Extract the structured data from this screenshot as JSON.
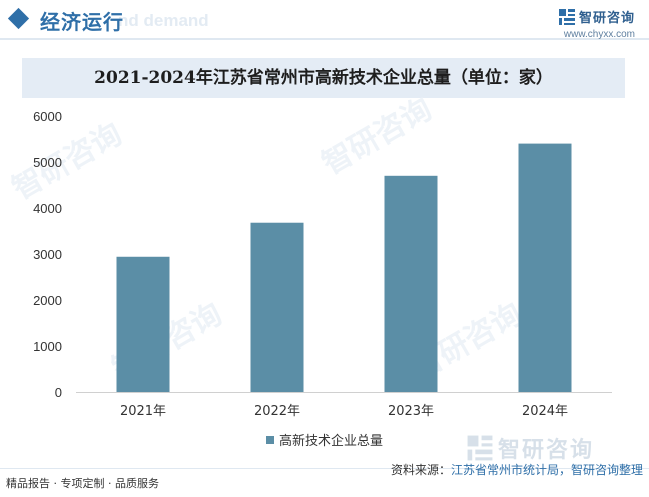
{
  "header": {
    "section_title": "经济运行",
    "ghost_title": "nd demand",
    "brand_name": "智研咨询",
    "brand_url": "www.chyxx.com"
  },
  "chart_data": {
    "type": "bar",
    "title": "2021-2024年江苏省常州市高新技术企业总量（单位：家）",
    "categories": [
      "2021年",
      "2022年",
      "2023年",
      "2024年"
    ],
    "series": [
      {
        "name": "高新技术企业总量",
        "values": [
          2940,
          3680,
          4700,
          5400
        ]
      }
    ],
    "ylim": [
      0,
      6000
    ],
    "yticks": [
      0,
      1000,
      2000,
      3000,
      4000,
      5000,
      6000
    ],
    "xlabel": "",
    "ylabel": "",
    "grid": false,
    "legend_position": "bottom",
    "bar_color": "#5b8ea6"
  },
  "footer": {
    "left_text": "精品报告 · 专项定制 · 品质服务",
    "source_label": "资料来源：",
    "source_value": "江苏省常州市统计局，智研咨询整理"
  },
  "watermark": {
    "text": "智研咨询"
  }
}
